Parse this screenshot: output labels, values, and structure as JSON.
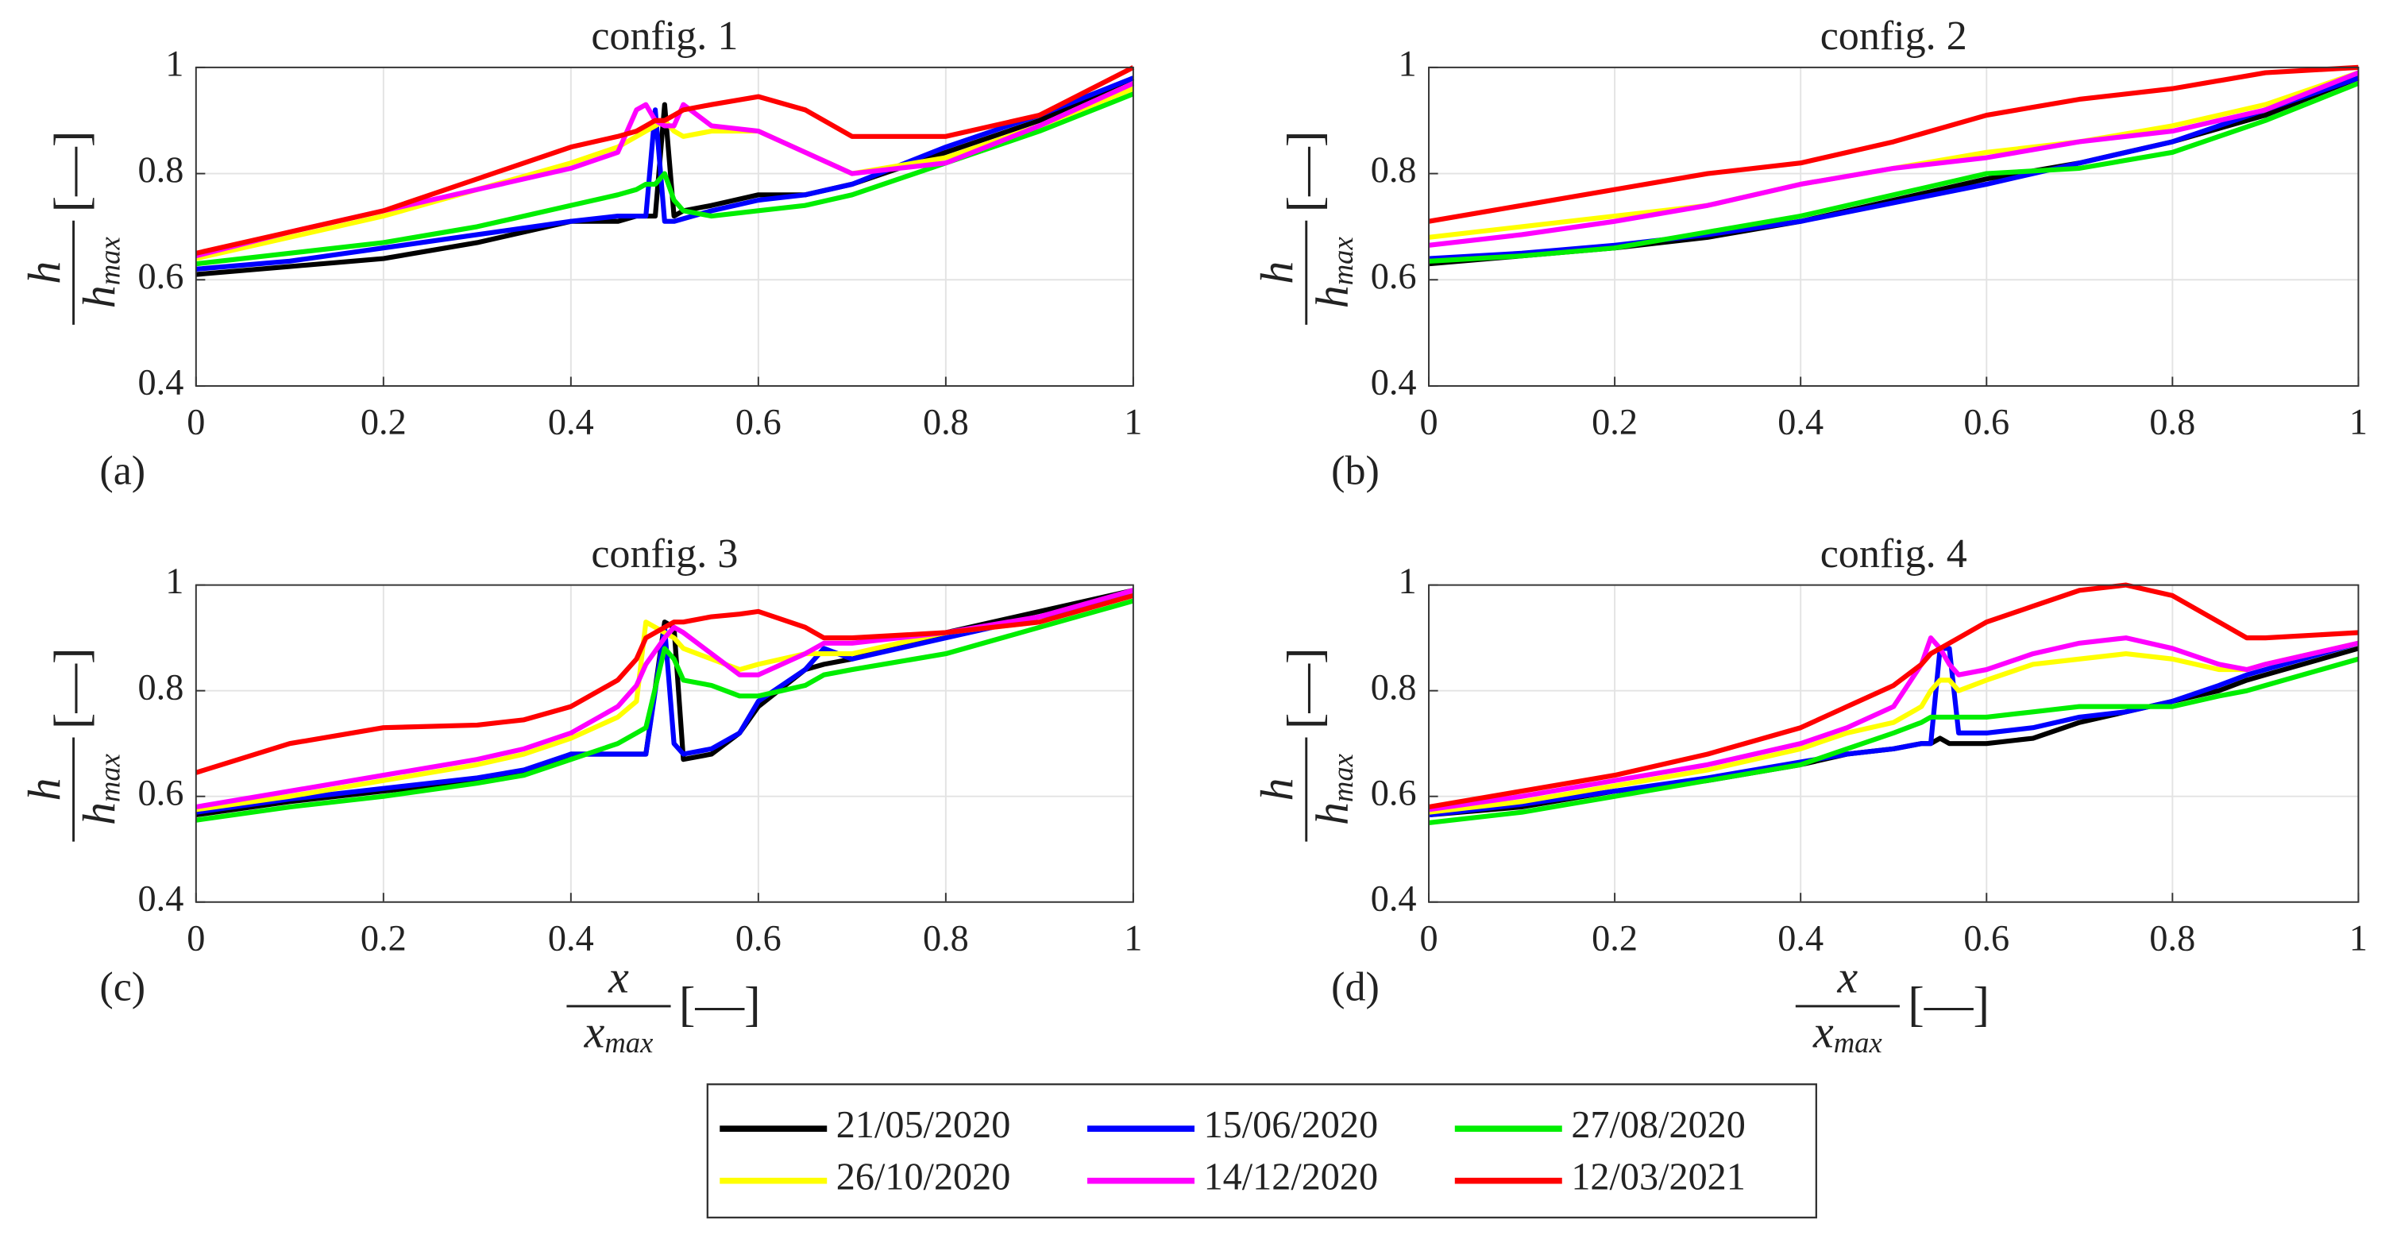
{
  "chart_data": [
    {
      "type": "line",
      "title": "config. 1",
      "panel": "(a)",
      "ylabel": {
        "numerator": "h",
        "denominator": "h",
        "subscript": "max",
        "unit": "[—]"
      },
      "x": [
        0,
        0.1,
        0.2,
        0.3,
        0.4,
        0.45,
        0.47,
        0.48,
        0.49,
        0.5,
        0.51,
        0.52,
        0.55,
        0.6,
        0.65,
        0.7,
        0.8,
        0.9,
        1
      ],
      "xlim": [
        0,
        1
      ],
      "ylim": [
        0.4,
        1
      ],
      "xticks": [
        0,
        0.2,
        0.4,
        0.6,
        0.8,
        1
      ],
      "yticks": [
        0.4,
        0.6,
        0.8,
        1
      ],
      "grid": true,
      "series": [
        {
          "name": "21/05/2020",
          "color": "#000000",
          "values": [
            0.61,
            0.625,
            0.64,
            0.67,
            0.71,
            0.71,
            0.72,
            0.72,
            0.72,
            0.93,
            0.72,
            0.73,
            0.74,
            0.76,
            0.76,
            0.78,
            0.84,
            0.9,
            0.98
          ]
        },
        {
          "name": "15/06/2020",
          "color": "#0000ff",
          "values": [
            0.62,
            0.635,
            0.66,
            0.685,
            0.71,
            0.72,
            0.72,
            0.72,
            0.92,
            0.71,
            0.71,
            0.715,
            0.73,
            0.75,
            0.76,
            0.78,
            0.85,
            0.91,
            0.98
          ]
        },
        {
          "name": "27/08/2020",
          "color": "#00ee00",
          "values": [
            0.63,
            0.65,
            0.67,
            0.7,
            0.74,
            0.76,
            0.77,
            0.78,
            0.78,
            0.8,
            0.75,
            0.73,
            0.72,
            0.73,
            0.74,
            0.76,
            0.82,
            0.88,
            0.95
          ]
        },
        {
          "name": "26/10/2020",
          "color": "#ffff00",
          "values": [
            0.64,
            0.68,
            0.72,
            0.77,
            0.82,
            0.85,
            0.87,
            0.88,
            0.89,
            0.9,
            0.88,
            0.87,
            0.88,
            0.88,
            0.84,
            0.8,
            0.83,
            0.89,
            0.96
          ]
        },
        {
          "name": "14/12/2020",
          "color": "#ff00ff",
          "values": [
            0.645,
            0.69,
            0.73,
            0.77,
            0.81,
            0.84,
            0.92,
            0.93,
            0.9,
            0.89,
            0.89,
            0.93,
            0.89,
            0.88,
            0.84,
            0.8,
            0.82,
            0.89,
            0.97
          ]
        },
        {
          "name": "12/03/2021",
          "color": "#ff0000",
          "values": [
            0.65,
            0.69,
            0.73,
            0.79,
            0.85,
            0.87,
            0.88,
            0.89,
            0.9,
            0.9,
            0.91,
            0.92,
            0.93,
            0.945,
            0.92,
            0.87,
            0.87,
            0.91,
            1.0
          ]
        }
      ]
    },
    {
      "type": "line",
      "title": "config. 2",
      "panel": "(b)",
      "ylabel": {
        "numerator": "h",
        "denominator": "h",
        "subscript": "max",
        "unit": "[—]"
      },
      "x": [
        0,
        0.1,
        0.2,
        0.3,
        0.4,
        0.5,
        0.6,
        0.7,
        0.8,
        0.9,
        1
      ],
      "xlim": [
        0,
        1
      ],
      "ylim": [
        0.4,
        1
      ],
      "xticks": [
        0,
        0.2,
        0.4,
        0.6,
        0.8,
        1
      ],
      "yticks": [
        0.4,
        0.6,
        0.8,
        1
      ],
      "grid": true,
      "series": [
        {
          "color": "#000000",
          "values": [
            0.63,
            0.645,
            0.66,
            0.68,
            0.71,
            0.75,
            0.79,
            0.82,
            0.86,
            0.91,
            0.98
          ]
        },
        {
          "color": "#0000ff",
          "values": [
            0.64,
            0.65,
            0.665,
            0.685,
            0.71,
            0.745,
            0.78,
            0.82,
            0.86,
            0.92,
            0.98
          ]
        },
        {
          "color": "#00ee00",
          "values": [
            0.635,
            0.645,
            0.66,
            0.69,
            0.72,
            0.76,
            0.8,
            0.81,
            0.84,
            0.9,
            0.97
          ]
        },
        {
          "color": "#ffff00",
          "values": [
            0.68,
            0.7,
            0.72,
            0.74,
            0.78,
            0.81,
            0.84,
            0.86,
            0.89,
            0.93,
            0.99
          ]
        },
        {
          "color": "#ff00ff",
          "values": [
            0.665,
            0.685,
            0.71,
            0.74,
            0.78,
            0.81,
            0.83,
            0.86,
            0.88,
            0.92,
            0.99
          ]
        },
        {
          "color": "#ff0000",
          "values": [
            0.71,
            0.74,
            0.77,
            0.8,
            0.82,
            0.86,
            0.91,
            0.94,
            0.96,
            0.99,
            1.0
          ]
        }
      ]
    },
    {
      "type": "line",
      "title": "config. 3",
      "panel": "(c)",
      "ylabel": {
        "numerator": "h",
        "denominator": "h",
        "subscript": "max",
        "unit": "[—]"
      },
      "xlabel": {
        "numerator": "x",
        "denominator": "x",
        "subscript": "max",
        "unit": "[—]"
      },
      "x": [
        0,
        0.1,
        0.2,
        0.3,
        0.35,
        0.4,
        0.45,
        0.47,
        0.48,
        0.5,
        0.51,
        0.52,
        0.55,
        0.58,
        0.6,
        0.65,
        0.67,
        0.7,
        0.8,
        0.9,
        1
      ],
      "xlim": [
        0,
        1
      ],
      "ylim": [
        0.4,
        1
      ],
      "xticks": [
        0,
        0.2,
        0.4,
        0.6,
        0.8,
        1
      ],
      "yticks": [
        0.4,
        0.6,
        0.8,
        1
      ],
      "grid": true,
      "series": [
        {
          "color": "#000000",
          "values": [
            0.565,
            0.59,
            0.61,
            0.63,
            0.645,
            0.68,
            0.68,
            0.68,
            0.68,
            0.93,
            0.92,
            0.67,
            0.68,
            0.72,
            0.77,
            0.84,
            0.85,
            0.86,
            0.91,
            0.95,
            0.99
          ]
        },
        {
          "color": "#0000ff",
          "values": [
            0.57,
            0.595,
            0.615,
            0.635,
            0.65,
            0.68,
            0.68,
            0.68,
            0.68,
            0.92,
            0.7,
            0.68,
            0.69,
            0.72,
            0.78,
            0.84,
            0.88,
            0.86,
            0.9,
            0.94,
            0.98
          ]
        },
        {
          "color": "#00ee00",
          "values": [
            0.555,
            0.58,
            0.6,
            0.625,
            0.64,
            0.67,
            0.7,
            0.72,
            0.73,
            0.88,
            0.86,
            0.82,
            0.81,
            0.79,
            0.79,
            0.81,
            0.83,
            0.84,
            0.87,
            0.92,
            0.97
          ]
        },
        {
          "color": "#ffff00",
          "values": [
            0.575,
            0.6,
            0.63,
            0.66,
            0.68,
            0.71,
            0.75,
            0.78,
            0.93,
            0.91,
            0.9,
            0.88,
            0.86,
            0.84,
            0.85,
            0.87,
            0.87,
            0.87,
            0.91,
            0.93,
            0.98
          ]
        },
        {
          "color": "#ff00ff",
          "values": [
            0.58,
            0.61,
            0.64,
            0.67,
            0.69,
            0.72,
            0.77,
            0.81,
            0.85,
            0.9,
            0.92,
            0.91,
            0.87,
            0.83,
            0.83,
            0.87,
            0.89,
            0.89,
            0.91,
            0.94,
            0.99
          ]
        },
        {
          "color": "#ff0000",
          "values": [
            0.645,
            0.7,
            0.73,
            0.735,
            0.745,
            0.77,
            0.82,
            0.86,
            0.9,
            0.92,
            0.93,
            0.93,
            0.94,
            0.945,
            0.95,
            0.92,
            0.9,
            0.9,
            0.91,
            0.93,
            0.98
          ]
        }
      ]
    },
    {
      "type": "line",
      "title": "config. 4",
      "panel": "(d)",
      "ylabel": {
        "numerator": "h",
        "denominator": "h",
        "subscript": "max",
        "unit": "[—]"
      },
      "xlabel": {
        "numerator": "x",
        "denominator": "x",
        "subscript": "max",
        "unit": "[—]"
      },
      "x": [
        0,
        0.1,
        0.2,
        0.3,
        0.4,
        0.45,
        0.5,
        0.53,
        0.54,
        0.55,
        0.56,
        0.57,
        0.6,
        0.65,
        0.7,
        0.75,
        0.8,
        0.85,
        0.88,
        0.9,
        1
      ],
      "xlim": [
        0,
        1
      ],
      "ylim": [
        0.4,
        1
      ],
      "xticks": [
        0,
        0.2,
        0.4,
        0.6,
        0.8,
        1
      ],
      "yticks": [
        0.4,
        0.6,
        0.8,
        1
      ],
      "grid": true,
      "series": [
        {
          "color": "#000000",
          "values": [
            0.565,
            0.58,
            0.61,
            0.63,
            0.66,
            0.68,
            0.69,
            0.7,
            0.7,
            0.71,
            0.7,
            0.7,
            0.7,
            0.71,
            0.74,
            0.76,
            0.78,
            0.8,
            0.82,
            0.83,
            0.88
          ]
        },
        {
          "color": "#0000ff",
          "values": [
            0.565,
            0.585,
            0.61,
            0.635,
            0.665,
            0.68,
            0.69,
            0.7,
            0.7,
            0.88,
            0.88,
            0.72,
            0.72,
            0.73,
            0.75,
            0.76,
            0.78,
            0.81,
            0.83,
            0.84,
            0.89
          ]
        },
        {
          "color": "#00ee00",
          "values": [
            0.55,
            0.57,
            0.6,
            0.63,
            0.66,
            0.69,
            0.72,
            0.74,
            0.75,
            0.75,
            0.75,
            0.75,
            0.75,
            0.76,
            0.77,
            0.77,
            0.77,
            0.79,
            0.8,
            0.81,
            0.86
          ]
        },
        {
          "color": "#ffff00",
          "values": [
            0.57,
            0.59,
            0.62,
            0.65,
            0.69,
            0.72,
            0.74,
            0.77,
            0.8,
            0.82,
            0.82,
            0.8,
            0.82,
            0.85,
            0.86,
            0.87,
            0.86,
            0.84,
            0.84,
            0.85,
            0.89
          ]
        },
        {
          "color": "#ff00ff",
          "values": [
            0.575,
            0.6,
            0.63,
            0.66,
            0.7,
            0.73,
            0.77,
            0.85,
            0.9,
            0.88,
            0.85,
            0.83,
            0.84,
            0.87,
            0.89,
            0.9,
            0.88,
            0.85,
            0.84,
            0.85,
            0.89
          ]
        },
        {
          "color": "#ff0000",
          "values": [
            0.58,
            0.61,
            0.64,
            0.68,
            0.73,
            0.77,
            0.81,
            0.85,
            0.87,
            0.88,
            0.89,
            0.9,
            0.93,
            0.96,
            0.99,
            1.0,
            0.98,
            0.93,
            0.9,
            0.9,
            0.91
          ]
        }
      ]
    }
  ]
}
